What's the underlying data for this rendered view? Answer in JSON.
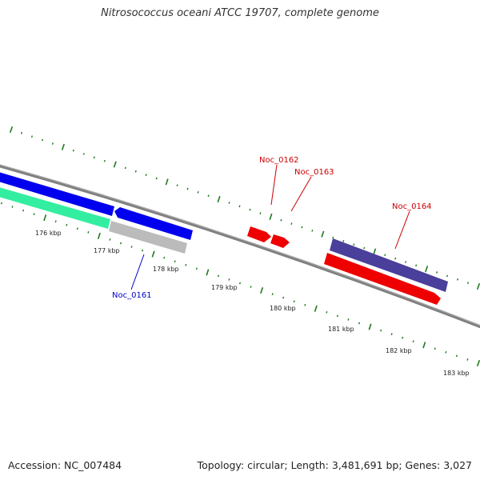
{
  "title": "Nitrosococcus oceani ATCC 19707, complete genome",
  "footer": {
    "accession": "Accession: NC_007484",
    "summary": "Topology: circular; Length: 3,481,691 bp; Genes: 3,027"
  },
  "scale_labels": [
    "176 kbp",
    "177 kbp",
    "178 kbp",
    "179 kbp",
    "180 kbp",
    "181 kbp",
    "182 kbp",
    "183 kbp"
  ],
  "gene_labels": [
    {
      "id": "noc-0161",
      "text": "Noc_0161",
      "color": "#0000cc"
    },
    {
      "id": "noc-0162",
      "text": "Noc_0162",
      "color": "#cc0000"
    },
    {
      "id": "noc-0163",
      "text": "Noc_0163",
      "color": "#cc0000"
    },
    {
      "id": "noc-0164",
      "text": "Noc_0164",
      "color": "#cc0000"
    }
  ],
  "colors": {
    "backbone": "#808080",
    "tick": "#1e7a1e",
    "cds_blue": "#0000ee",
    "cds_teal": "#33eea0",
    "cds_gray": "#bbbbbb",
    "cds_red": "#ee0000",
    "cds_purple": "#4a3f9a"
  }
}
